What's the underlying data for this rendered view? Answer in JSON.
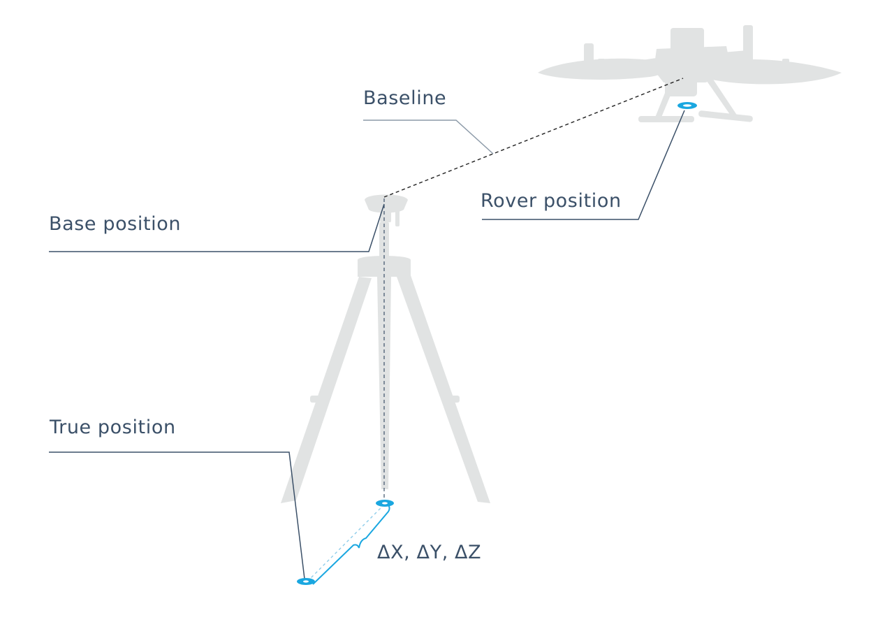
{
  "labels": {
    "baseline": "Baseline",
    "rover_position": "Rover position",
    "base_position": "Base position",
    "true_position": "True position",
    "delta": "ΔX, ΔY, ΔZ"
  },
  "colors": {
    "text": "#3b5068",
    "leader_line": "#3b5068",
    "silhouette": "#e1e3e3",
    "marker": "#1aa7e0",
    "dashed": "#222222"
  },
  "icons": {
    "drone": "drone-silhouette",
    "tripod": "tripod-silhouette",
    "gnss_antenna": "gnss-antenna-silhouette"
  }
}
